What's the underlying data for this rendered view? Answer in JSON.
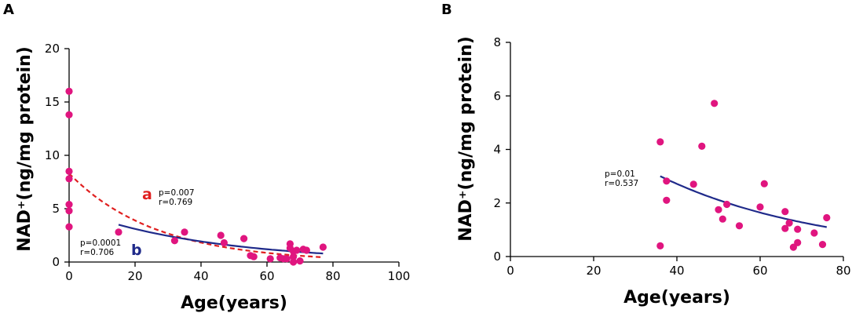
{
  "chart_data": [
    {
      "panel_label": "A",
      "type": "scatter",
      "xlabel": "Age(years)",
      "ylabel": "NAD⁺(ng/mg protein)",
      "xlim": [
        0,
        100
      ],
      "ylim": [
        0,
        20
      ],
      "x_ticks": [
        "0",
        "20",
        "40",
        "60",
        "80",
        "100"
      ],
      "y_ticks": [
        "0",
        "5",
        "10",
        "15",
        "20"
      ],
      "point_color": "#e0157f",
      "points": [
        [
          0,
          16.0
        ],
        [
          0,
          13.8
        ],
        [
          0,
          8.5
        ],
        [
          0,
          7.8
        ],
        [
          0,
          5.4
        ],
        [
          0,
          4.8
        ],
        [
          0,
          3.3
        ],
        [
          15,
          2.8
        ],
        [
          32,
          2.0
        ],
        [
          35,
          2.8
        ],
        [
          46,
          2.5
        ],
        [
          47,
          1.8
        ],
        [
          53,
          2.2
        ],
        [
          55,
          0.6
        ],
        [
          56,
          0.5
        ],
        [
          61,
          0.3
        ],
        [
          64,
          0.4
        ],
        [
          65,
          0.3
        ],
        [
          66,
          0.3
        ],
        [
          67,
          1.7
        ],
        [
          67,
          1.3
        ],
        [
          68,
          1.0
        ],
        [
          68,
          0.5
        ],
        [
          68,
          0.0
        ],
        [
          69,
          1.1
        ],
        [
          70,
          0.1
        ],
        [
          71,
          1.2
        ],
        [
          72,
          1.1
        ],
        [
          77,
          1.4
        ]
      ],
      "fits": [
        {
          "letter": "a",
          "color": "#e02020",
          "style": "dashed",
          "x_range": [
            0,
            77
          ],
          "start_y": 8.3,
          "end_y": 0.45,
          "stats": [
            "p=0.007",
            "r=0.769"
          ]
        },
        {
          "letter": "b",
          "color": "#1f2a8a",
          "style": "solid",
          "x_range": [
            15,
            77
          ],
          "start_y": 3.5,
          "end_y": 0.8,
          "stats": [
            "p=0.0001",
            "r=0.706"
          ]
        }
      ]
    },
    {
      "panel_label": "B",
      "type": "scatter",
      "xlabel": "Age(years)",
      "ylabel": "NAD⁺(ng/mg protein)",
      "xlim": [
        0,
        80
      ],
      "ylim": [
        0,
        8
      ],
      "x_ticks": [
        "0",
        "20",
        "40",
        "60",
        "80"
      ],
      "y_ticks": [
        "0",
        "2",
        "4",
        "6",
        "8"
      ],
      "point_color": "#e0157f",
      "points": [
        [
          36,
          4.28
        ],
        [
          36,
          0.4
        ],
        [
          37.5,
          2.82
        ],
        [
          37.5,
          2.1
        ],
        [
          44,
          2.7
        ],
        [
          46,
          4.12
        ],
        [
          49,
          5.72
        ],
        [
          50,
          1.75
        ],
        [
          51,
          1.4
        ],
        [
          52,
          1.95
        ],
        [
          55,
          1.15
        ],
        [
          60,
          1.85
        ],
        [
          61,
          2.72
        ],
        [
          66,
          1.68
        ],
        [
          66,
          1.05
        ],
        [
          67,
          1.25
        ],
        [
          68,
          0.35
        ],
        [
          69,
          0.52
        ],
        [
          69,
          1.02
        ],
        [
          73,
          0.88
        ],
        [
          75,
          0.45
        ],
        [
          76,
          1.45
        ]
      ],
      "fits": [
        {
          "letter": "",
          "color": "#1f2a8a",
          "style": "solid",
          "x_range": [
            36,
            76
          ],
          "start_y": 3.0,
          "end_y": 1.1,
          "stats": [
            "p=0.01",
            "r=0.537"
          ]
        }
      ]
    }
  ]
}
